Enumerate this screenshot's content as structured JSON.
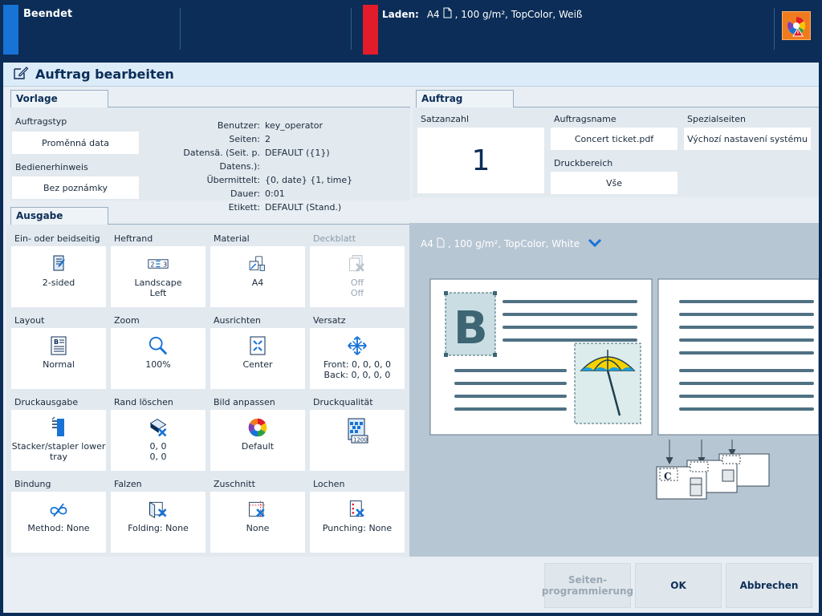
{
  "topbar": {
    "status": "Beendet",
    "load_label": "Laden:",
    "load_value": "A4",
    "load_details": ", 100 g/m², TopColor, Weiß",
    "accent_blue": "#1773d6",
    "accent_red": "#e21c2a",
    "alert_icon": "color-wheel-warning-icon"
  },
  "window": {
    "title": "Auftrag bearbeiten",
    "title_icon": "edit-job-icon"
  },
  "vorlage": {
    "tab": "Vorlage",
    "auftragstyp_label": "Auftragstyp",
    "auftragstyp_value": "Proměnná data",
    "bedienerhinweis_label": "Bedienerhinweis",
    "bedienerhinweis_value": "Bez poznámky",
    "info": [
      {
        "k": "Benutzer:",
        "v": "key_operator"
      },
      {
        "k": "Seiten:",
        "v": "2"
      },
      {
        "k": "Datensä. (Seit. p. Datens.):",
        "v": "DEFAULT ({1})"
      },
      {
        "k": "Übermittelt:",
        "v": "{0, date} {1, time}"
      },
      {
        "k": "Dauer:",
        "v": "0:01"
      },
      {
        "k": "Etikett:",
        "v": "DEFAULT (Stand.)"
      }
    ]
  },
  "auftrag": {
    "tab": "Auftrag",
    "satzanzahl_label": "Satzanzahl",
    "satzanzahl_value": "1",
    "auftragsname_label": "Auftragsname",
    "auftragsname_value": "Concert ticket.pdf",
    "spezialseiten_label": "Spezialseiten",
    "spezialseiten_value": "Výchozí nastavení systému",
    "druckbereich_label": "Druckbereich",
    "druckbereich_value": "Vše"
  },
  "ausgabe": {
    "tab": "Ausgabe",
    "tiles": [
      {
        "label": "Ein- oder beidseitig",
        "line1": "2-sided",
        "line2": "",
        "icon": "duplex-icon",
        "disabled": false
      },
      {
        "label": "Heftrand",
        "line1": "Landscape",
        "line2": "Left",
        "icon": "binding-edge-icon",
        "disabled": false
      },
      {
        "label": "Material",
        "line1": "A4",
        "line2": "",
        "icon": "media-icon",
        "disabled": false
      },
      {
        "label": "Deckblatt",
        "line1": "Off",
        "line2": "Off",
        "icon": "cover-off-icon",
        "disabled": true
      },
      {
        "label": "Layout",
        "line1": "Normal",
        "line2": "",
        "icon": "layout-icon",
        "disabled": false
      },
      {
        "label": "Zoom",
        "line1": "100%",
        "line2": "",
        "icon": "zoom-icon",
        "disabled": false
      },
      {
        "label": "Ausrichten",
        "line1": "Center",
        "line2": "",
        "icon": "align-center-icon",
        "disabled": false
      },
      {
        "label": "Versatz",
        "line1": "Front: 0, 0, 0, 0",
        "line2": "Back: 0, 0, 0, 0",
        "icon": "shift-icon",
        "disabled": false
      },
      {
        "label": "Druckausgabe",
        "line1": "Stacker/stapler lower",
        "line2": "tray",
        "icon": "stacker-icon",
        "disabled": false
      },
      {
        "label": "Rand löschen",
        "line1": "0, 0",
        "line2": "0, 0",
        "icon": "edge-erase-icon",
        "disabled": false
      },
      {
        "label": "Bild anpassen",
        "line1": "Default",
        "line2": "",
        "icon": "color-adjust-icon",
        "disabled": false
      },
      {
        "label": "Druckqualität",
        "line1": "",
        "line2": "",
        "icon": "print-quality-1200-icon",
        "badge": "1200",
        "disabled": false
      },
      {
        "label": "Bindung",
        "line1": "Method: None",
        "line2": "",
        "icon": "binding-icon",
        "disabled": false
      },
      {
        "label": "Falzen",
        "line1": "Folding: None",
        "line2": "",
        "icon": "folding-icon",
        "disabled": false
      },
      {
        "label": "Zuschnitt",
        "line1": "None",
        "line2": "",
        "icon": "trimming-icon",
        "disabled": false
      },
      {
        "label": "Lochen",
        "line1": "Punching: None",
        "line2": "",
        "icon": "punching-icon",
        "disabled": false
      }
    ]
  },
  "preview": {
    "paper_size": "A4",
    "paper_details": ", 100 g/m², TopColor, White",
    "page1_letter": "B",
    "stack_letter": "C"
  },
  "buttons": {
    "page_programming_line1": "Seiten-",
    "page_programming_line2": "programmierung",
    "ok": "OK",
    "cancel": "Abbrechen"
  }
}
